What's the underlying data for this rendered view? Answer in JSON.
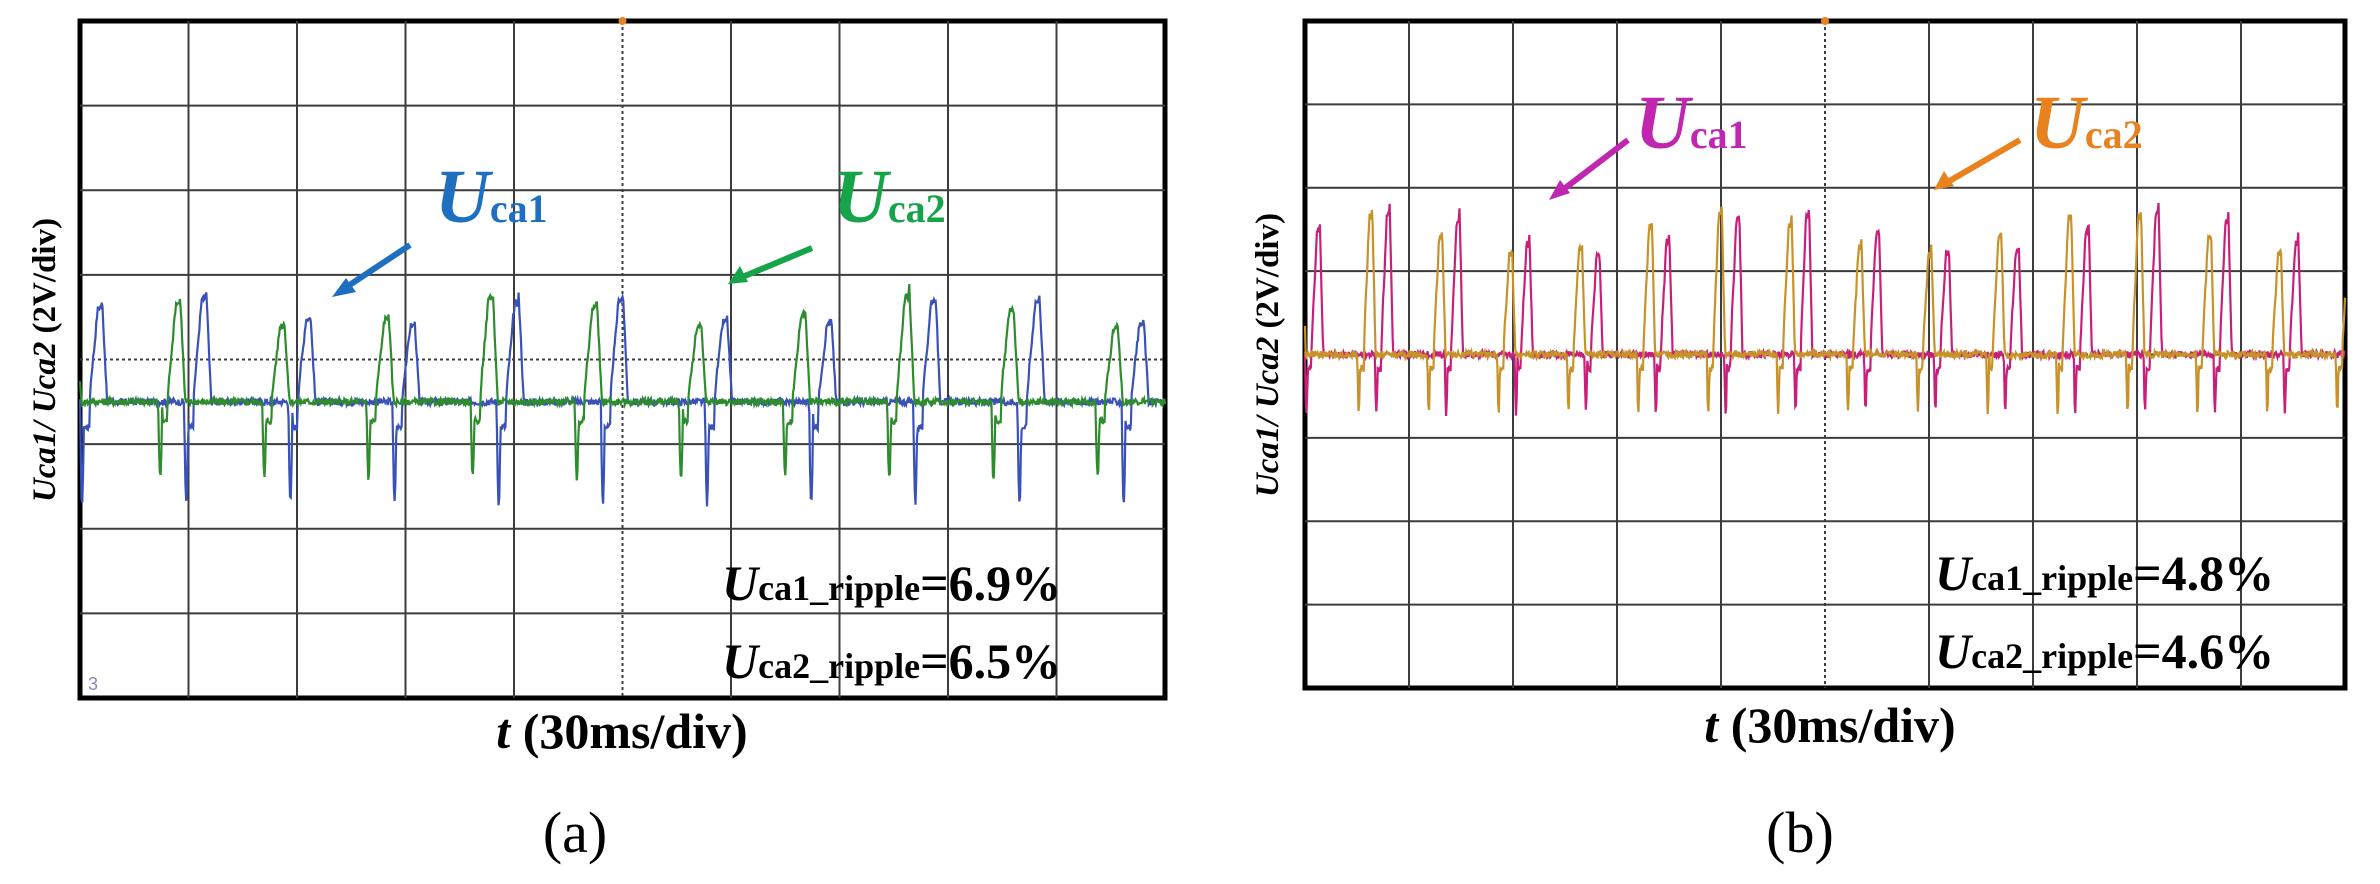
{
  "figure": {
    "panels": [
      {
        "id": "a",
        "panel_label": "(a)",
        "ylabel_main": "Uca1/ Uca2",
        "ylabel_unit": " (2V/div)",
        "xlabel_var": "t",
        "xlabel_unit": " (30ms/div)",
        "channel_marker": "3",
        "annotations": [
          {
            "main": "U",
            "sub": "ca1",
            "color": "#1f6fc0"
          },
          {
            "main": "U",
            "sub": "ca2",
            "color": "#17a34a"
          }
        ],
        "ripple_lines": [
          {
            "var": "U",
            "sub": "ca1_ripple",
            "value": "=6.9%"
          },
          {
            "var": "U",
            "sub": "ca2_ripple",
            "value": "=6.5%"
          }
        ]
      },
      {
        "id": "b",
        "panel_label": "(b)",
        "ylabel_main": "Uca1/ Uca2",
        "ylabel_unit": " (2V/div)",
        "xlabel_var": "t",
        "xlabel_unit": " (30ms/div)",
        "annotations": [
          {
            "main": "U",
            "sub": "ca1",
            "color": "#c026b0"
          },
          {
            "main": "U",
            "sub": "ca2",
            "color": "#e8821e"
          }
        ],
        "ripple_lines": [
          {
            "var": "U",
            "sub": "ca1_ripple",
            "value": "=4.8%"
          },
          {
            "var": "U",
            "sub": "ca2_ripple",
            "value": "=4.6%"
          }
        ]
      }
    ]
  },
  "chart_data": [
    {
      "type": "line",
      "panel": "a",
      "xlabel": "t (30ms/div)",
      "ylabel": "Uca1/ Uca2 (2V/div)",
      "grid": true,
      "x_divisions": 10,
      "y_divisions": 8,
      "x_unit_per_div": "30ms",
      "y_unit_per_div": "2V",
      "xlim_div": [
        0,
        10
      ],
      "ylim_div": [
        -3.5,
        4.5
      ],
      "series": [
        {
          "name": "Uca1",
          "color": "#3a52b8",
          "ripple_percent": 6.9,
          "baseline_div": 0,
          "peak_div": 1.4,
          "trough_div": -1.2,
          "pulse_period_div": 0.48
        },
        {
          "name": "Uca2",
          "color": "#2e8b2e",
          "ripple_percent": 6.5,
          "baseline_div": 0,
          "peak_div": 1.4,
          "trough_div": -0.9,
          "pulse_period_div": 0.48
        }
      ]
    },
    {
      "type": "line",
      "panel": "b",
      "xlabel": "t (30ms/div)",
      "ylabel": "Uca1/ Uca2 (2V/div)",
      "grid": true,
      "x_divisions": 10,
      "y_divisions": 8,
      "x_unit_per_div": "30ms",
      "y_unit_per_div": "2V",
      "xlim_div": [
        0,
        10
      ],
      "ylim_div": [
        -4,
        4
      ],
      "series": [
        {
          "name": "Uca1",
          "color": "#c8207a",
          "ripple_percent": 4.8,
          "baseline_div": 0,
          "peak_div": 1.9,
          "trough_div": -0.7,
          "pulse_period_div": 0.336
        },
        {
          "name": "Uca2",
          "color": "#c8922a",
          "ripple_percent": 4.6,
          "baseline_div": 0,
          "peak_div": 1.9,
          "trough_div": -0.7,
          "pulse_period_div": 0.336
        }
      ]
    }
  ]
}
